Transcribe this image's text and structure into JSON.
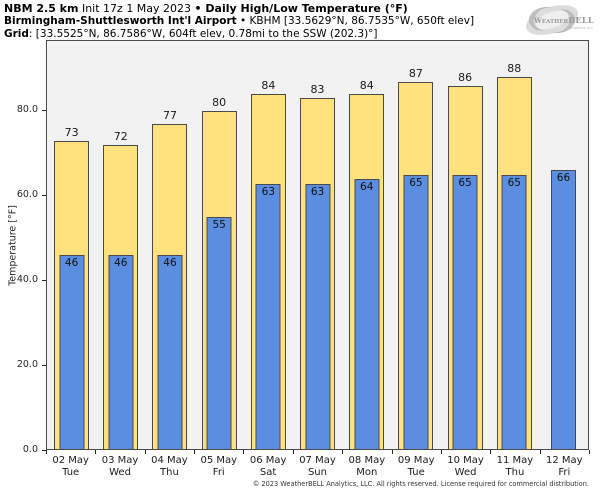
{
  "header": {
    "model": "NBM 2.5 km",
    "init": " Init 17z 1 May 2023 ",
    "product": "• Daily High/Low Temperature (°F)",
    "station": "Birmingham-Shuttlesworth Int'l Airport",
    "station_sep": " • ",
    "station_detail": "KBHM [33.5629°N, 86.7535°W, 650ft elev]",
    "grid_label": "Grid",
    "grid_detail": ": [33.5525°N, 86.7586°W, 604ft elev, 0.78mi to the SSW (202.3)°]"
  },
  "logo": {
    "brand": "WeatherBELL",
    "sub": "Analytics LLC"
  },
  "chart_data": {
    "type": "bar",
    "title": "Daily High/Low Temperature (°F)",
    "ylabel": "Temperature [°F]",
    "ylim": [
      0,
      96.6
    ],
    "grid": false,
    "legend_position": "none",
    "plot_background": "#f2f2f3",
    "bar_edge_color": "#4a4a4a",
    "yticks": [
      {
        "value": 0,
        "label": "0.0"
      },
      {
        "value": 20,
        "label": "20.0"
      },
      {
        "value": 40,
        "label": "40.0"
      },
      {
        "value": 60,
        "label": "60.0"
      },
      {
        "value": 80,
        "label": "80.0"
      }
    ],
    "categories": [
      {
        "date": "02 May",
        "day": "Tue"
      },
      {
        "date": "03 May",
        "day": "Wed"
      },
      {
        "date": "04 May",
        "day": "Thu"
      },
      {
        "date": "05 May",
        "day": "Fri"
      },
      {
        "date": "06 May",
        "day": "Sat"
      },
      {
        "date": "07 May",
        "day": "Sun"
      },
      {
        "date": "08 May",
        "day": "Mon"
      },
      {
        "date": "09 May",
        "day": "Tue"
      },
      {
        "date": "10 May",
        "day": "Wed"
      },
      {
        "date": "11 May",
        "day": "Thu"
      },
      {
        "date": "12 May",
        "day": "Fri"
      }
    ],
    "series": [
      {
        "name": "High",
        "color": "#ffe17d",
        "values": [
          73,
          72,
          77,
          80,
          84,
          83,
          84,
          87,
          86,
          88,
          null
        ]
      },
      {
        "name": "Low",
        "color": "#5b8ee0",
        "values": [
          46,
          46,
          46,
          55,
          63,
          63,
          64,
          65,
          65,
          65,
          66
        ]
      }
    ]
  },
  "footer": {
    "copyright": "© 2023 WeatherBELL Analytics, LLC. All rights reserved. License required for commercial distribution."
  }
}
